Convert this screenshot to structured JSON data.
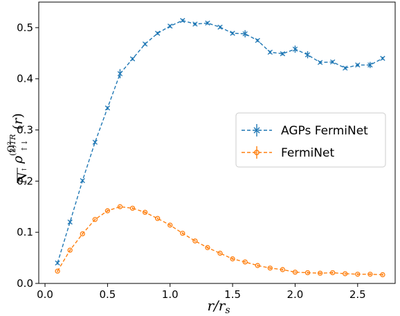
{
  "chart_data": {
    "type": "line",
    "xlabel": "r/r_s",
    "ylabel": "Ω²/N↑ ρ↑↓^(2)TR(r)",
    "xlim": [
      -0.05,
      2.8
    ],
    "ylim": [
      0,
      0.55
    ],
    "xticks": [
      "0.0",
      "0.5",
      "1.0",
      "1.5",
      "2.0",
      "2.5"
    ],
    "yticks": [
      "0.0",
      "0.1",
      "0.2",
      "0.3",
      "0.4",
      "0.5"
    ],
    "grid": false,
    "legend_position": "center-right",
    "series": [
      {
        "name": "AGPs FermiNet",
        "color": "#1f77b4",
        "marker": "x",
        "linestyle": "dashed",
        "x": [
          0.1,
          0.2,
          0.3,
          0.4,
          0.5,
          0.6,
          0.7,
          0.8,
          0.9,
          1.0,
          1.1,
          1.2,
          1.3,
          1.4,
          1.5,
          1.6,
          1.7,
          1.8,
          1.9,
          2.0,
          2.1,
          2.2,
          2.3,
          2.4,
          2.5,
          2.6,
          2.7
        ],
        "values": [
          0.04,
          0.12,
          0.201,
          0.276,
          0.343,
          0.41,
          0.439,
          0.468,
          0.489,
          0.503,
          0.514,
          0.507,
          0.509,
          0.501,
          0.489,
          0.488,
          0.475,
          0.452,
          0.449,
          0.458,
          0.447,
          0.432,
          0.433,
          0.421,
          0.427,
          0.427,
          0.44
        ],
        "errors": [
          0.003,
          0.003,
          0.003,
          0.003,
          0.003,
          0.009,
          0.003,
          0.003,
          0.003,
          0.003,
          0.003,
          0.003,
          0.003,
          0.003,
          0.003,
          0.007,
          0.003,
          0.003,
          0.003,
          0.007,
          0.007,
          0.003,
          0.003,
          0.003,
          0.003,
          0.006,
          0.003
        ]
      },
      {
        "name": "FermiNet",
        "color": "#ff7f0e",
        "marker": "o",
        "linestyle": "dashed",
        "x": [
          0.1,
          0.2,
          0.3,
          0.4,
          0.5,
          0.6,
          0.7,
          0.8,
          0.9,
          1.0,
          1.1,
          1.2,
          1.3,
          1.4,
          1.5,
          1.6,
          1.7,
          1.8,
          1.9,
          2.0,
          2.1,
          2.2,
          2.3,
          2.4,
          2.5,
          2.6,
          2.7
        ],
        "values": [
          0.024,
          0.065,
          0.097,
          0.125,
          0.142,
          0.15,
          0.147,
          0.139,
          0.127,
          0.114,
          0.098,
          0.083,
          0.07,
          0.059,
          0.048,
          0.042,
          0.035,
          0.03,
          0.027,
          0.022,
          0.021,
          0.02,
          0.021,
          0.019,
          0.018,
          0.018,
          0.017
        ],
        "errors": [
          0.002,
          0.002,
          0.002,
          0.002,
          0.002,
          0.002,
          0.002,
          0.002,
          0.002,
          0.002,
          0.002,
          0.002,
          0.002,
          0.002,
          0.002,
          0.002,
          0.002,
          0.002,
          0.002,
          0.002,
          0.002,
          0.002,
          0.002,
          0.002,
          0.002,
          0.002,
          0.002
        ]
      }
    ]
  }
}
